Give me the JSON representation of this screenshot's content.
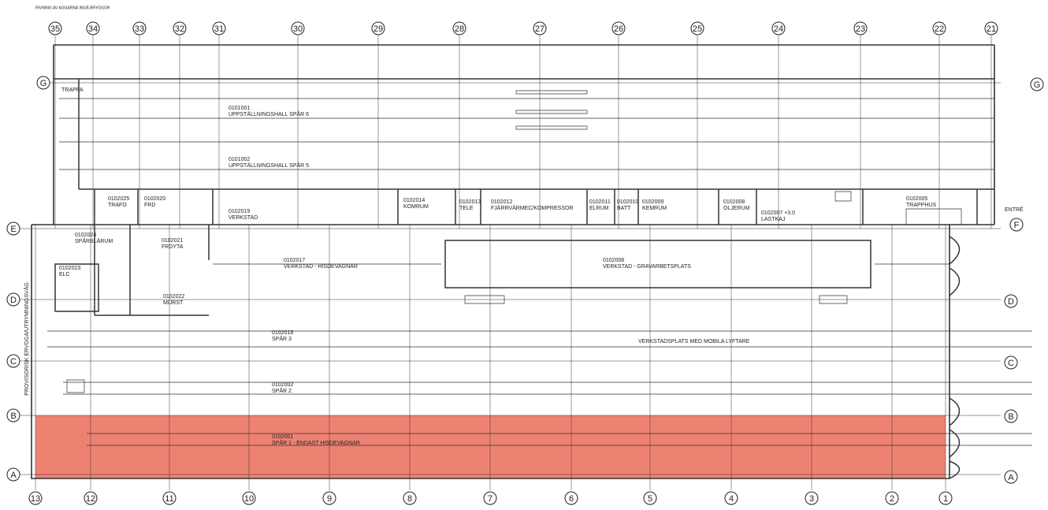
{
  "header_note": "RIVNING AV AGGARNA INGÅ BRYGGOR",
  "top_axes": [
    "35",
    "34",
    "33",
    "32",
    "31",
    "30",
    "29",
    "28",
    "27",
    "26",
    "25",
    "24",
    "23",
    "22",
    "21"
  ],
  "bottom_axes": [
    "13",
    "12",
    "11",
    "10",
    "9",
    "8",
    "7",
    "6",
    "5",
    "4",
    "3",
    "2",
    "1"
  ],
  "left_axes": [
    "G",
    "E",
    "D",
    "C",
    "B",
    "A"
  ],
  "right_axes": [
    "G",
    "F",
    "D",
    "C",
    "B",
    "A"
  ],
  "side_text": "PROVISORISK ERVGGA/UTRYMNINGSVÄG",
  "entrance": "ENTRÉ",
  "stair": "TRAPPA",
  "rooms": [
    {
      "id": "0101001",
      "name": "UPPSTÄLLNINGSHALL SPÅR 6"
    },
    {
      "id": "0101002",
      "name": "UPPSTÄLLNINGSHALL SPÅR 5"
    },
    {
      "id": "0102025",
      "name": "TRAFO"
    },
    {
      "id": "0102020",
      "name": "FRD"
    },
    {
      "id": "0102019",
      "name": "VERKSTAD"
    },
    {
      "id": "0102014",
      "name": "KOMRUM"
    },
    {
      "id": "0102013",
      "name": "TELE"
    },
    {
      "id": "0102012",
      "name": "FJÄRRVÄRMEC/KOMPRESSOR"
    },
    {
      "id": "0102011",
      "name": "ELRUM"
    },
    {
      "id": "0102010",
      "name": "BATT"
    },
    {
      "id": "0102009",
      "name": "KEMRUM"
    },
    {
      "id": "0102008",
      "name": "OLJERUM"
    },
    {
      "id": "0102007 +3.0",
      "name": "LASTKAJ"
    },
    {
      "id": "0102005",
      "name": "TRAPPHUS"
    },
    {
      "id": "0102024",
      "name": "SPÅRBLÄRUM"
    },
    {
      "id": "0102021",
      "name": "FRDYTA"
    },
    {
      "id": "0102017",
      "name": "VERKSTAD - HISDEVAGNAR"
    },
    {
      "id": "0102006",
      "name": "VERKSTAD - GRAVARBETSPLATS"
    },
    {
      "id": "0102023",
      "name": "ELC"
    },
    {
      "id": "0102022",
      "name": "MIJRST"
    },
    {
      "id": "0102018",
      "name": "SPÅR 3"
    },
    {
      "id": "0102002",
      "name": "SPÅR 2"
    },
    {
      "id": "0102001",
      "name": "SPÅR 1 - ENDAST HISDEVAGNAR"
    }
  ],
  "workshop_note": "VERKSTADSPLATS MED MOBILA LYFTARE"
}
